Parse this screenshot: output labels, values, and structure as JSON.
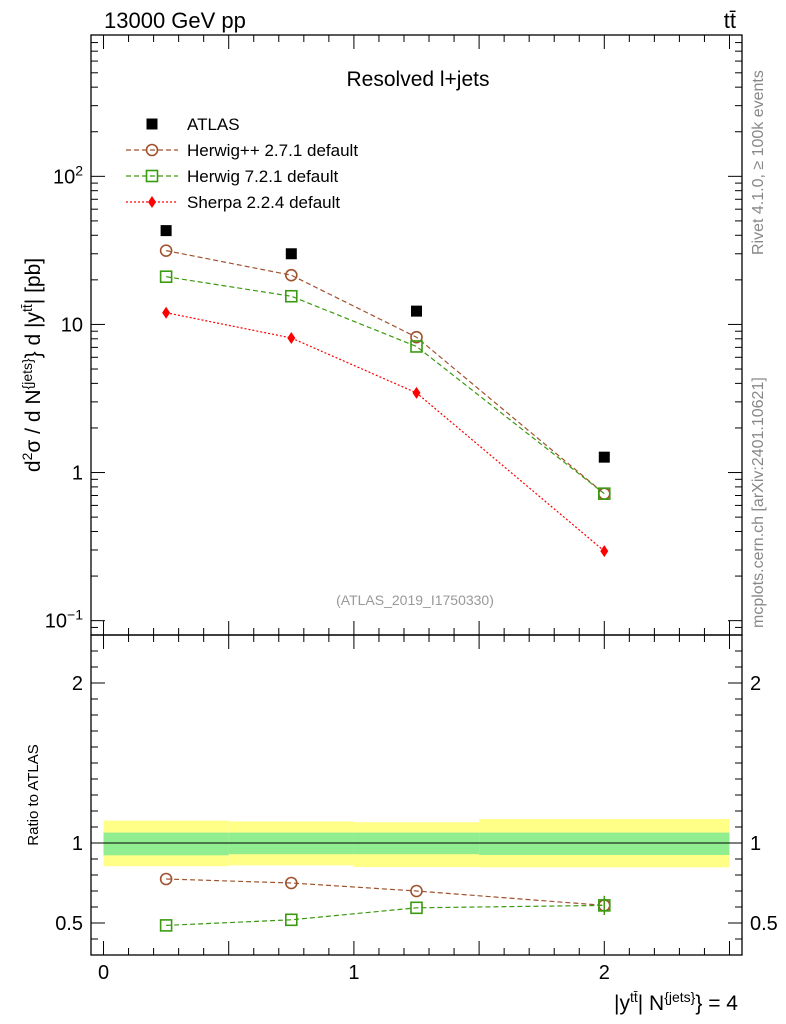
{
  "header": {
    "energy_label": "13000 GeV pp",
    "process_label": "tt̄"
  },
  "side_text": {
    "rivet": "Rivet 4.1.0, ≥ 100k events",
    "source": "mcplots.cern.ch [arXiv:2401.10621]"
  },
  "chart_data": [
    {
      "type": "scatter",
      "panel": "main",
      "title": "Resolved l+jets",
      "watermark": "(ATLAS_2019_I1750330)",
      "ylabel": "d²σ / d N^{jets} d |y^{tt̄}| [pb]",
      "yscale": "log",
      "ylim": [
        0.08,
        900
      ],
      "xlim": [
        -0.05,
        2.55
      ],
      "y_tick_labels": [
        {
          "value": 0.1,
          "base": "10",
          "exp": "−1"
        },
        {
          "value": 1,
          "base": "1",
          "exp": ""
        },
        {
          "value": 10,
          "base": "10",
          "exp": ""
        },
        {
          "value": 100,
          "base": "10",
          "exp": "2"
        }
      ],
      "legend_position": "top-left",
      "x": [
        0.25,
        0.75,
        1.25,
        2.0
      ],
      "series": [
        {
          "name": "ATLAS",
          "marker": "square-filled",
          "color": "#000000",
          "line": "none",
          "values": [
            43,
            30,
            12.3,
            1.27
          ],
          "bin_edges": [
            0,
            0.5,
            1.0,
            1.5,
            2.5
          ]
        },
        {
          "name": "Herwig++ 2.7.1 default",
          "marker": "circle-open",
          "color": "#a0522d",
          "line": "dashed",
          "values": [
            31.5,
            21.5,
            8.2,
            0.72
          ]
        },
        {
          "name": "Herwig 7.2.1 default",
          "marker": "square-open",
          "color": "#3a9a10",
          "line": "dashed",
          "values": [
            21,
            15.5,
            7.1,
            0.72
          ]
        },
        {
          "name": "Sherpa 2.2.4 default",
          "marker": "diamond-filled",
          "color": "#ff0000",
          "line": "dotted",
          "values": [
            12,
            8.1,
            3.45,
            0.295
          ]
        }
      ]
    },
    {
      "type": "scatter",
      "panel": "ratio",
      "ylabel": "Ratio to ATLAS",
      "xlabel": "|y^{tt̄}| N^{jets} = 4",
      "ylim": [
        0.3,
        2.3
      ],
      "xlim": [
        -0.05,
        2.55
      ],
      "x_ticks": [
        0,
        1,
        2
      ],
      "x_tick_labels": [
        "0",
        "1",
        "2"
      ],
      "y_ticks": [
        0.5,
        1,
        2
      ],
      "y_tick_labels": [
        "0.5",
        "1",
        "2"
      ],
      "reference": 1,
      "bands": [
        {
          "name": "total uncertainty",
          "color": "#ffff88",
          "bins": [
            [
              0,
              0.5,
              0.855,
              1.14
            ],
            [
              0.5,
              1.0,
              0.86,
              1.135
            ],
            [
              1.0,
              1.5,
              0.85,
              1.13
            ],
            [
              1.5,
              2.5,
              0.848,
              1.15
            ]
          ]
        },
        {
          "name": "stat uncertainty",
          "color": "#90ee90",
          "bins": [
            [
              0,
              0.5,
              0.923,
              1.065
            ],
            [
              0.5,
              1.0,
              0.93,
              1.065
            ],
            [
              1.0,
              1.5,
              0.93,
              1.065
            ],
            [
              1.5,
              2.5,
              0.925,
              1.065
            ]
          ]
        }
      ],
      "x": [
        0.25,
        0.75,
        1.25,
        2.0
      ],
      "series": [
        {
          "name": "Herwig++ 2.7.1 default",
          "marker": "circle-open",
          "color": "#a0522d",
          "line": "dashed",
          "values": [
            0.775,
            0.75,
            0.7,
            0.61
          ],
          "errors": [
            0,
            0,
            0,
            0.05
          ]
        },
        {
          "name": "Herwig 7.2.1 default",
          "marker": "square-open",
          "color": "#3a9a10",
          "line": "dashed",
          "values": [
            0.485,
            0.52,
            0.595,
            0.61
          ],
          "errors": [
            0,
            0,
            0,
            0.06
          ]
        }
      ]
    }
  ]
}
